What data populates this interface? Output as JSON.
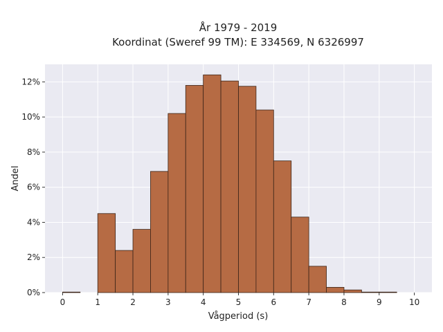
{
  "chart_data": {
    "type": "bar",
    "title_lines": [
      "År 1979 - 2019",
      "Koordinat (Sweref 99 TM): E 334569, N 6326997"
    ],
    "xlabel": "Vågperiod (s)",
    "ylabel": "Andel",
    "x_ticks": [
      "0",
      "1",
      "2",
      "3",
      "4",
      "5",
      "6",
      "7",
      "8",
      "9",
      "10"
    ],
    "y_ticks": [
      "0%",
      "2%",
      "4%",
      "6%",
      "8%",
      "10%",
      "12%"
    ],
    "xlim": [
      -0.5,
      10.5
    ],
    "ylim": [
      0,
      13
    ],
    "bin_width": 0.5,
    "bins": [
      {
        "x0": 0.0,
        "value": 0.03
      },
      {
        "x0": 0.5,
        "value": 0.0
      },
      {
        "x0": 1.0,
        "value": 4.5
      },
      {
        "x0": 1.5,
        "value": 2.4
      },
      {
        "x0": 2.0,
        "value": 3.6
      },
      {
        "x0": 2.5,
        "value": 6.9
      },
      {
        "x0": 3.0,
        "value": 10.2
      },
      {
        "x0": 3.5,
        "value": 11.8
      },
      {
        "x0": 4.0,
        "value": 12.4
      },
      {
        "x0": 4.5,
        "value": 12.05
      },
      {
        "x0": 5.0,
        "value": 11.75
      },
      {
        "x0": 5.5,
        "value": 10.4
      },
      {
        "x0": 6.0,
        "value": 7.5
      },
      {
        "x0": 6.5,
        "value": 4.3
      },
      {
        "x0": 7.0,
        "value": 1.5
      },
      {
        "x0": 7.5,
        "value": 0.3
      },
      {
        "x0": 8.0,
        "value": 0.15
      },
      {
        "x0": 8.5,
        "value": 0.03
      },
      {
        "x0": 9.0,
        "value": 0.03
      }
    ],
    "grid": true,
    "colors": {
      "bar_fill": "#b66b44",
      "bar_edge": "#3b2418",
      "plot_background": "#eaeaf2",
      "grid": "#ffffff"
    }
  }
}
